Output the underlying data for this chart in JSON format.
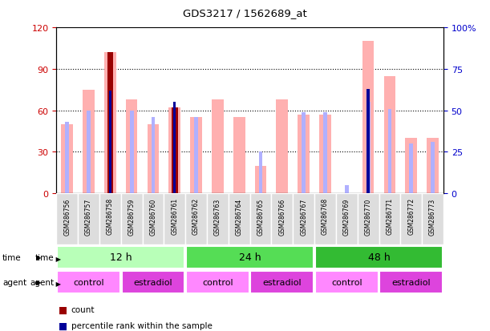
{
  "title": "GDS3217 / 1562689_at",
  "samples": [
    "GSM286756",
    "GSM286757",
    "GSM286758",
    "GSM286759",
    "GSM286760",
    "GSM286761",
    "GSM286762",
    "GSM286763",
    "GSM286764",
    "GSM286765",
    "GSM286766",
    "GSM286767",
    "GSM286768",
    "GSM286769",
    "GSM286770",
    "GSM286771",
    "GSM286772",
    "GSM286773"
  ],
  "value_bars": [
    50,
    75,
    102,
    68,
    50,
    62,
    55,
    68,
    55,
    20,
    68,
    57,
    57,
    0,
    110,
    85,
    40,
    40
  ],
  "rank_bars_pct": [
    43,
    50,
    55,
    50,
    46,
    50,
    46,
    0,
    0,
    25,
    0,
    49,
    49,
    5,
    55,
    51,
    30,
    31
  ],
  "count_bars": [
    0,
    0,
    102,
    0,
    0,
    62,
    0,
    0,
    0,
    0,
    0,
    0,
    0,
    0,
    0,
    0,
    0,
    0
  ],
  "percentile_bars_pct": [
    0,
    0,
    62,
    0,
    0,
    55,
    0,
    0,
    0,
    0,
    0,
    0,
    0,
    0,
    63,
    0,
    0,
    0
  ],
  "time_groups": [
    {
      "label": "12 h",
      "start": 0,
      "end": 6,
      "color": "#b8ffb8"
    },
    {
      "label": "24 h",
      "start": 6,
      "end": 12,
      "color": "#55dd55"
    },
    {
      "label": "48 h",
      "start": 12,
      "end": 18,
      "color": "#33bb33"
    }
  ],
  "agent_groups": [
    {
      "label": "control",
      "start": 0,
      "end": 3,
      "color": "#ff88ff"
    },
    {
      "label": "estradiol",
      "start": 3,
      "end": 6,
      "color": "#dd44dd"
    },
    {
      "label": "control",
      "start": 6,
      "end": 9,
      "color": "#ff88ff"
    },
    {
      "label": "estradiol",
      "start": 9,
      "end": 12,
      "color": "#dd44dd"
    },
    {
      "label": "control",
      "start": 12,
      "end": 15,
      "color": "#ff88ff"
    },
    {
      "label": "estradiol",
      "start": 15,
      "end": 18,
      "color": "#dd44dd"
    }
  ],
  "ylim_left": [
    0,
    120
  ],
  "ylim_right": [
    0,
    100
  ],
  "yticks_left": [
    0,
    30,
    60,
    90,
    120
  ],
  "yticks_right": [
    0,
    25,
    50,
    75,
    100
  ],
  "color_value": "#ffb0b0",
  "color_rank": "#b0b0ff",
  "color_count": "#990000",
  "color_percentile": "#000099",
  "bg_color": "#ffffff",
  "left_tick_color": "#cc0000",
  "right_tick_color": "#0000cc",
  "xlabel_bg": "#dddddd"
}
